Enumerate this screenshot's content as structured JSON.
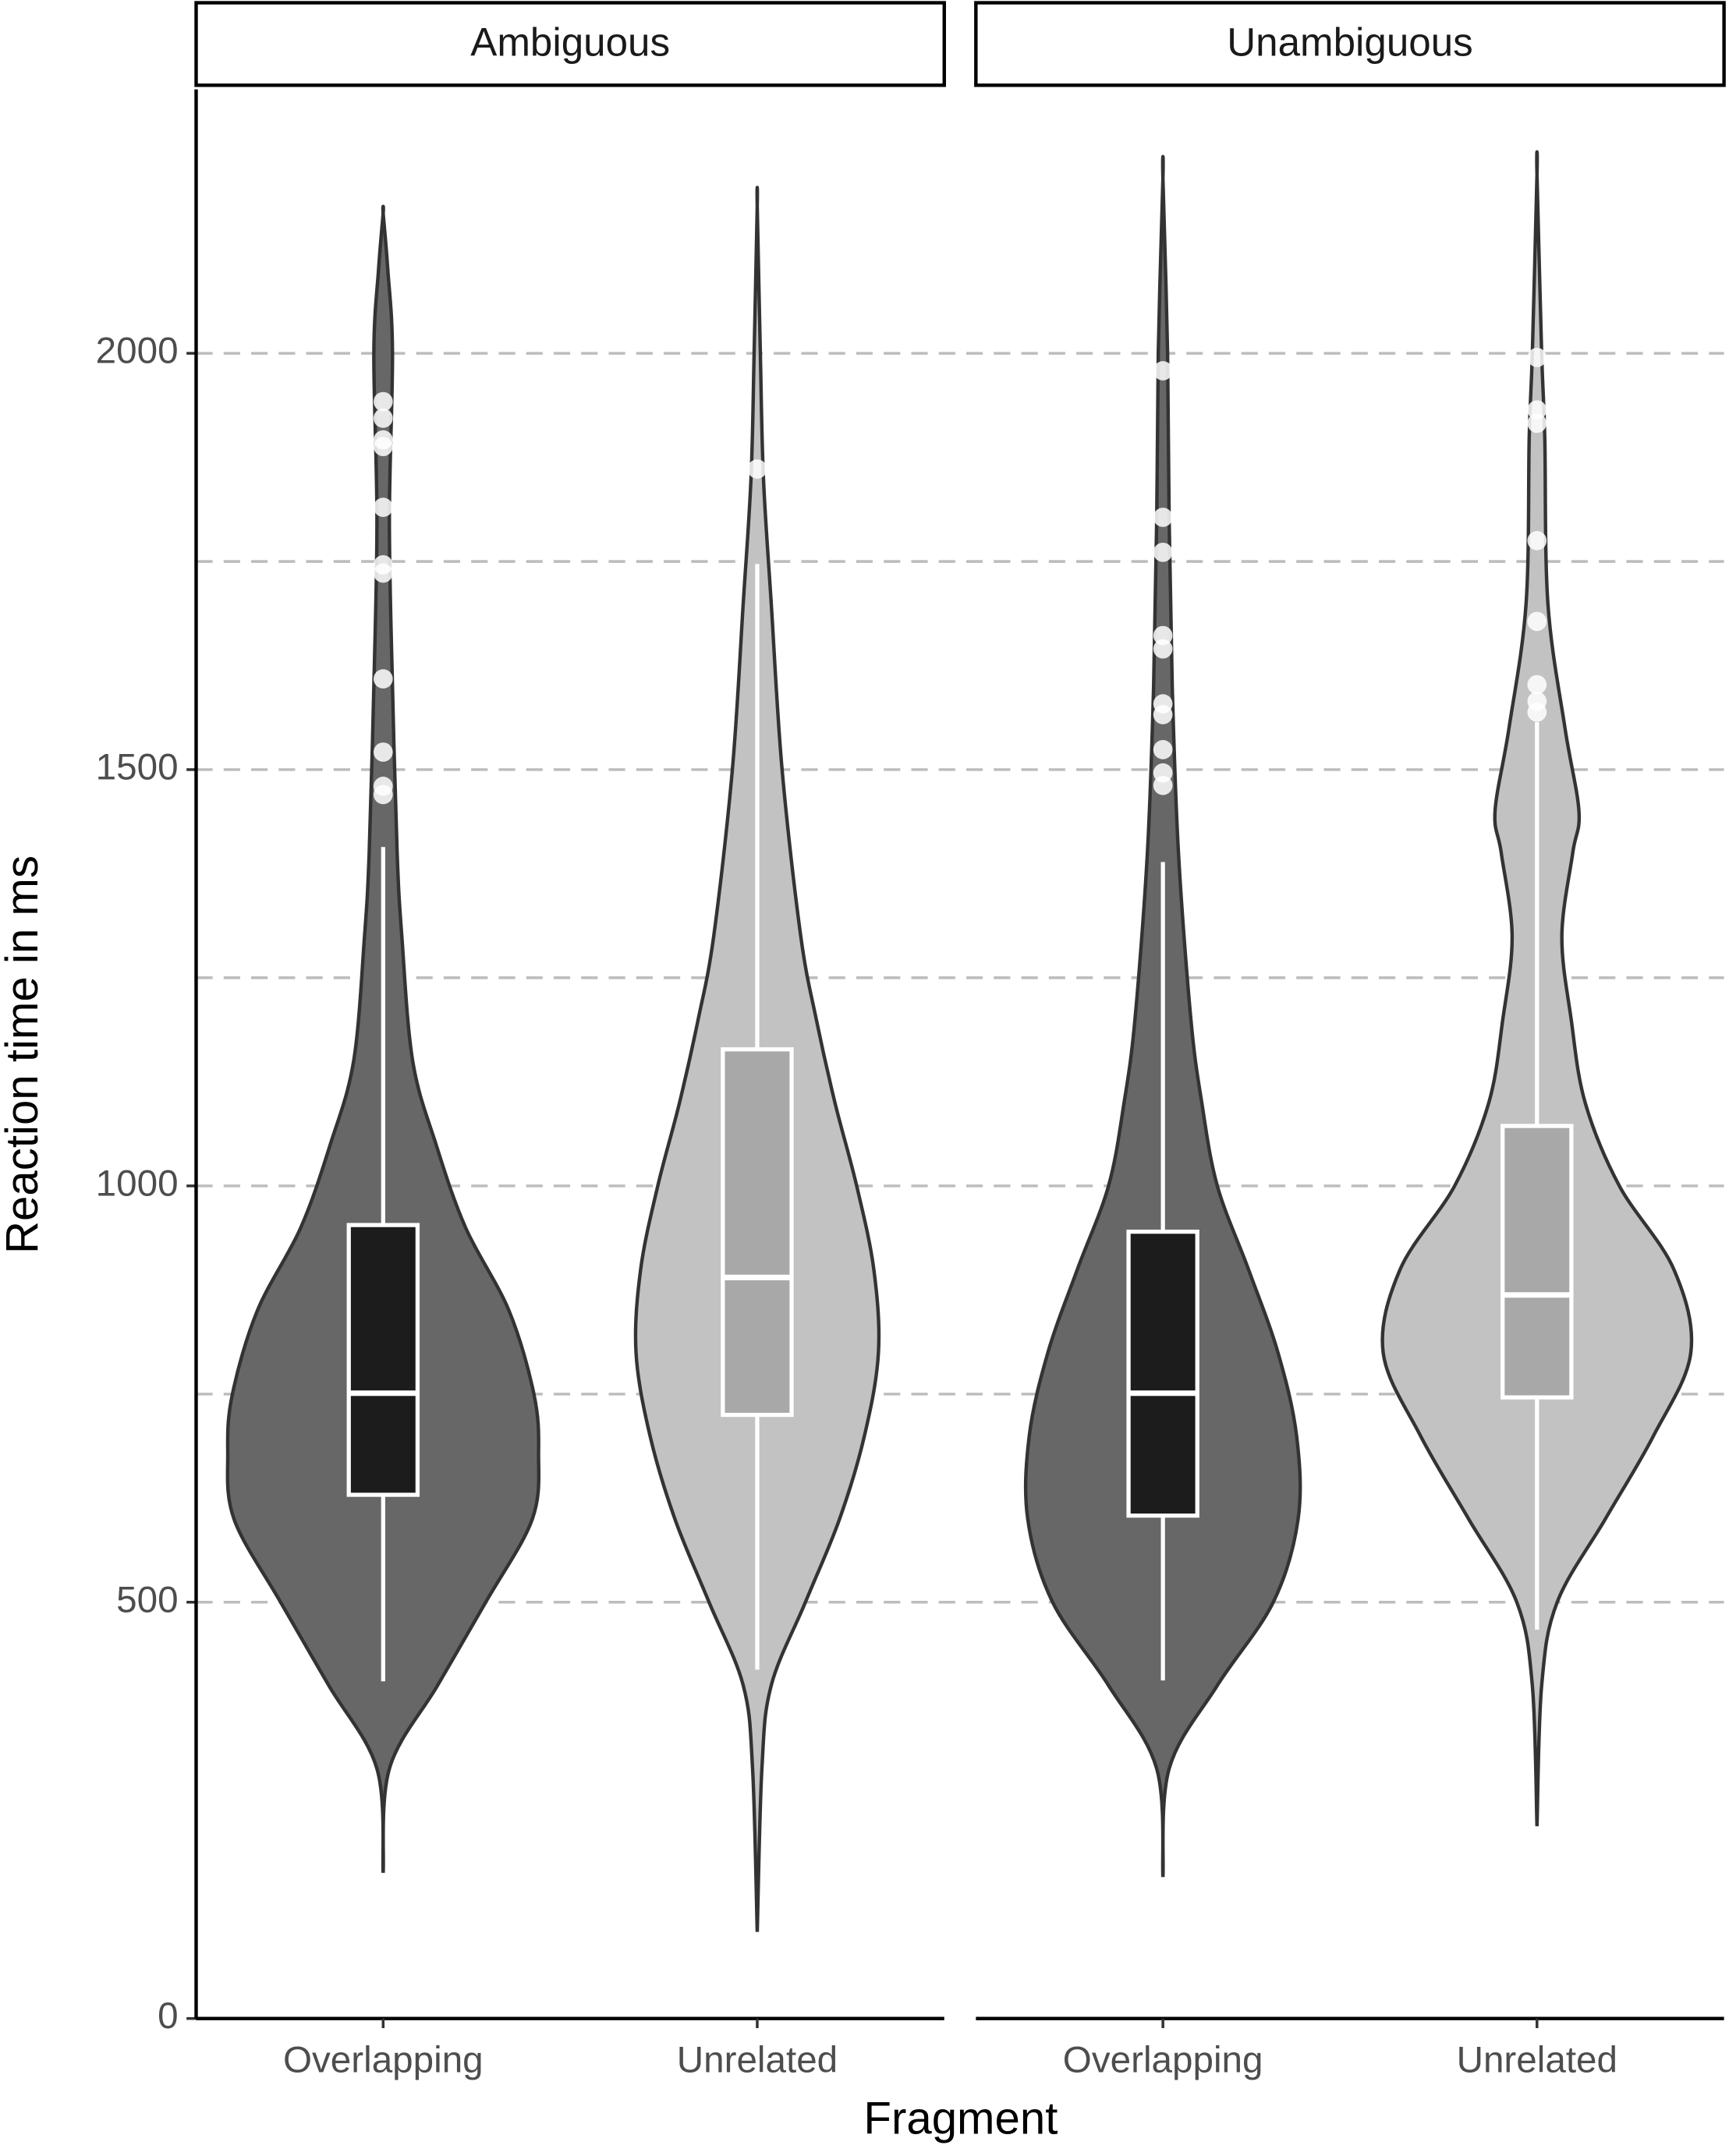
{
  "chart_data": {
    "type": "violin",
    "x_label": "Fragment",
    "y_label": "Reaction time in ms",
    "ylim": [
      0,
      2317
    ],
    "yticks": [
      0,
      500,
      1000,
      1500,
      2000
    ],
    "yminor": [
      750,
      1250,
      1750
    ],
    "grid": true,
    "categories": [
      "Overlapping",
      "Unrelated"
    ],
    "violin_colors": [
      "#676767",
      "#c2c2c2"
    ],
    "box_colors": [
      "#1c1c1c",
      "#a8a8a8"
    ],
    "facets": [
      {
        "title": "Ambiguous",
        "groups": [
          {
            "whisker_low": 405,
            "q1": 629,
            "median": 751,
            "q3": 953,
            "whisker_high": 1407,
            "outliers": [
              1942,
              1922,
              1896,
              1888,
              1815,
              1746,
              1736,
              1609,
              1521,
              1480,
              1470
            ],
            "density_y": [
              175,
              300,
              400,
              500,
              600,
              680,
              750,
              850,
              950,
              1050,
              1150,
              1300,
              1400,
              1600,
              1800,
              2000,
              2100,
              2168
            ],
            "density": [
              0,
              0.04,
              0.35,
              0.66,
              0.96,
              1,
              0.97,
              0.81,
              0.53,
              0.34,
              0.19,
              0.12,
              0.09,
              0.06,
              0.04,
              0.06,
              0.03,
              0
            ]
          },
          {
            "whisker_low": 419,
            "q1": 725,
            "median": 890,
            "q3": 1164,
            "whisker_high": 1747,
            "outliers": [
              1861
            ],
            "density_y": [
              104,
              300,
              400,
              500,
              600,
              700,
              800,
              900,
              1000,
              1100,
              1200,
              1300,
              1500,
              1700,
              1850,
              2000,
              2177
            ],
            "density": [
              0,
              0.03,
              0.09,
              0.31,
              0.53,
              0.69,
              0.78,
              0.75,
              0.64,
              0.5,
              0.38,
              0.28,
              0.16,
              0.09,
              0.04,
              0.02,
              0
            ]
          }
        ]
      },
      {
        "title": "Unambiguous",
        "groups": [
          {
            "whisker_low": 406,
            "q1": 604,
            "median": 751,
            "q3": 945,
            "whisker_high": 1389,
            "outliers": [
              1979,
              1803,
              1761,
              1661,
              1645,
              1579,
              1566,
              1524,
              1496,
              1481
            ],
            "density_y": [
              170,
              300,
              400,
              500,
              600,
              700,
              800,
              900,
              1000,
              1100,
              1200,
              1400,
              1600,
              1800,
              2000,
              2210
            ],
            "density": [
              0,
              0.04,
              0.35,
              0.71,
              0.87,
              0.86,
              0.74,
              0.55,
              0.35,
              0.25,
              0.18,
              0.1,
              0.06,
              0.04,
              0.03,
              0
            ]
          },
          {
            "whisker_low": 467,
            "q1": 746,
            "median": 869,
            "q3": 1072,
            "whisker_high": 1557,
            "outliers": [
              1995,
              1932,
              1916,
              1775,
              1678,
              1602,
              1582,
              1569
            ],
            "density_y": [
              231,
              400,
              500,
              600,
              700,
              800,
              900,
              1000,
              1100,
              1200,
              1300,
              1400,
              1450,
              1550,
              1700,
              1900,
              2000,
              2215
            ],
            "density": [
              0,
              0.03,
              0.13,
              0.44,
              0.75,
              0.99,
              0.88,
              0.53,
              0.31,
              0.22,
              0.16,
              0.23,
              0.27,
              0.18,
              0.07,
              0.05,
              0.03,
              0
            ]
          }
        ]
      }
    ]
  }
}
